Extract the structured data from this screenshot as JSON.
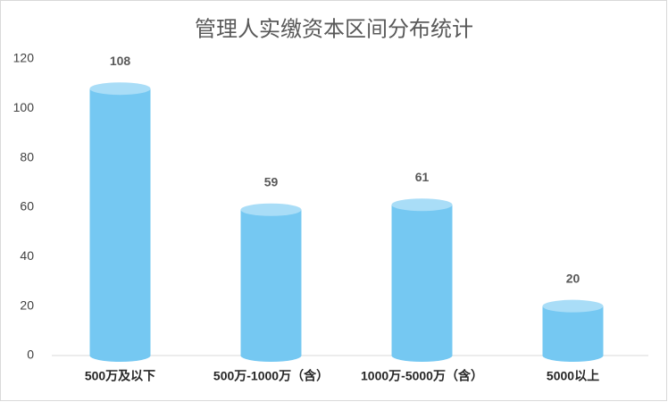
{
  "chart_data": {
    "type": "bar",
    "title": "管理人实缴资本区间分布统计",
    "categories": [
      "500万及以下",
      "500万-1000万（含）",
      "1000万-5000万（含）",
      "5000以上"
    ],
    "values": [
      108,
      59,
      61,
      20
    ],
    "color": "#75c8f2",
    "ylim": [
      0,
      120
    ],
    "yticks": [
      0,
      20,
      40,
      60,
      80,
      100,
      120
    ],
    "grid": false
  }
}
